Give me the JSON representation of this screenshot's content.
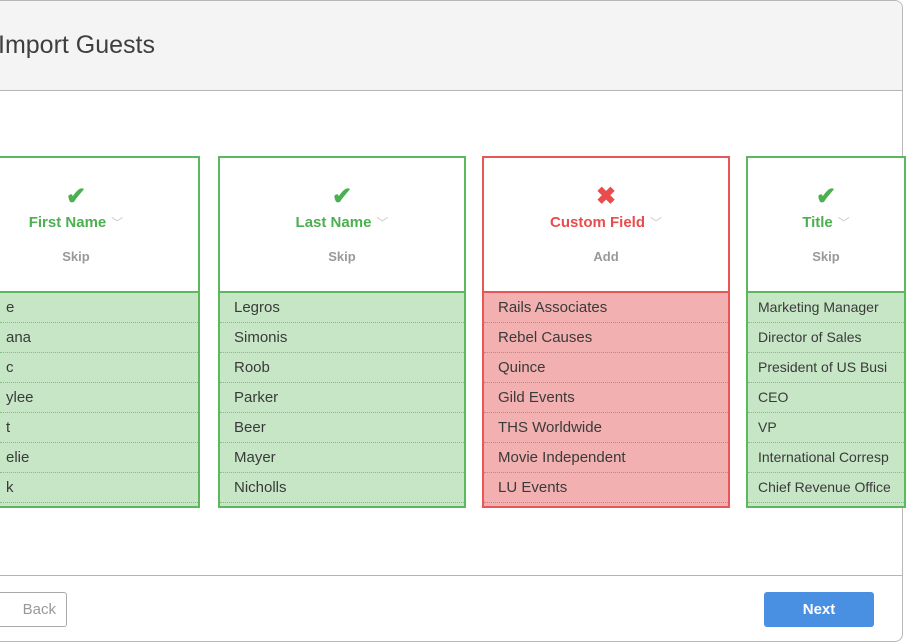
{
  "header": {
    "title": "Import Guests"
  },
  "columns": [
    {
      "field": "First Name",
      "status": "matched",
      "action": "Skip",
      "rows": [
        "e",
        "ana",
        "c",
        "ylee",
        "t",
        "elie",
        "k"
      ]
    },
    {
      "field": "Last Name",
      "status": "matched",
      "action": "Skip",
      "rows": [
        "Legros",
        "Simonis",
        "Roob",
        "Parker",
        "Beer",
        "Mayer",
        "Nicholls"
      ]
    },
    {
      "field": "Custom Field",
      "status": "unmatched",
      "action": "Add",
      "rows": [
        "Rails Associates",
        "Rebel Causes",
        "Quince",
        "Gild Events",
        "THS Worldwide",
        "Movie Independent",
        "LU Events"
      ]
    },
    {
      "field": "Title",
      "status": "matched",
      "action": "Skip",
      "rows": [
        "Marketing Manager",
        "Director of Sales",
        "President of US Busi",
        "CEO",
        "VP",
        "International Corresp",
        "Chief Revenue Office"
      ]
    }
  ],
  "icons": {
    "matched": "✔",
    "unmatched": "✖",
    "dropdown": "﹀"
  },
  "colors": {
    "matched": "#5cb85c",
    "unmatched": "#e85656",
    "primary": "#4a90e2"
  },
  "footer": {
    "back_label": "Back",
    "next_label": "Next"
  }
}
